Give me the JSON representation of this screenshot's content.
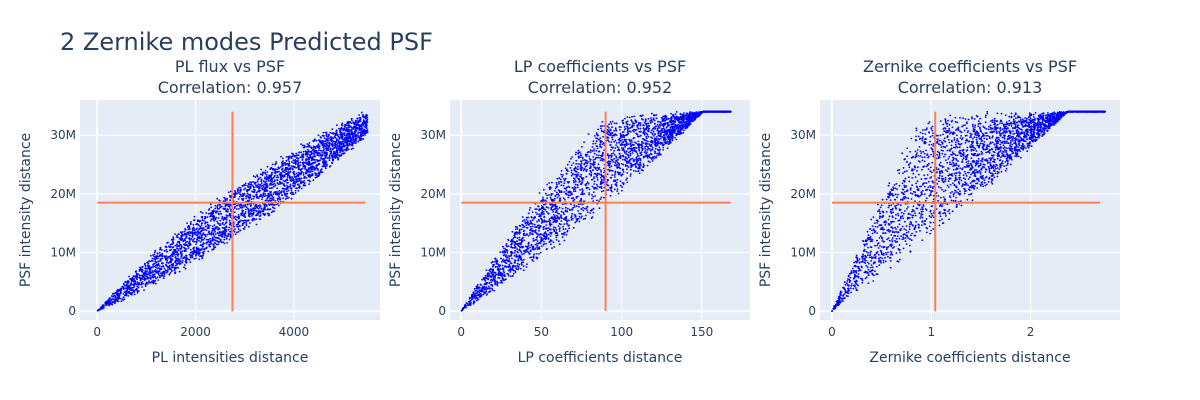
{
  "figure": {
    "title": "2 Zernike modes Predicted PSF"
  },
  "chart_data": [
    {
      "type": "scatter",
      "title": "PL flux vs PSF",
      "subtitle": "Correlation: 0.957",
      "xlabel": "PL intensities distance",
      "ylabel": "PSF intensity distance",
      "xlim": [
        -350,
        5750
      ],
      "ylim": [
        -1500000,
        36000000
      ],
      "xticks": [
        0,
        2000,
        4000
      ],
      "xtick_labels": [
        "0",
        "2000",
        "4000"
      ],
      "yticks": [
        0,
        10000000,
        20000000,
        30000000
      ],
      "ytick_labels": [
        "0",
        "10M",
        "20M",
        "30M"
      ],
      "point_color": "#0000ff",
      "line_color": "#ff7f50",
      "scatter": {
        "x_max": 5500,
        "y_max": 34000000,
        "upper_slope": 10000,
        "upper_curve": 0.6,
        "lower_slope": 3200,
        "lower_curve": 2.0
      },
      "mean_x": 2750,
      "mean_y": 18500000,
      "vline_y": [
        0,
        34000000
      ],
      "hline_x": [
        0,
        5450
      ]
    },
    {
      "type": "scatter",
      "title": "LP coefficients vs PSF",
      "subtitle": "Correlation: 0.952",
      "xlabel": "LP coefficients distance",
      "ylabel": "PSF intensity distance",
      "xlim": [
        -7,
        180
      ],
      "ylim": [
        -1500000,
        36000000
      ],
      "xticks": [
        0,
        50,
        100,
        150
      ],
      "xtick_labels": [
        "0",
        "50",
        "100",
        "150"
      ],
      "yticks": [
        0,
        10000000,
        20000000,
        30000000
      ],
      "ytick_labels": [
        "0",
        "10M",
        "20M",
        "30M"
      ],
      "point_color": "#0000ff",
      "line_color": "#ff7f50",
      "scatter": {
        "x_max": 168,
        "y_max": 34000000,
        "upper_slope": 480000,
        "upper_curve": 0.5,
        "lower_slope": 150000,
        "lower_curve": 1.6
      },
      "mean_x": 90,
      "mean_y": 18500000,
      "vline_y": [
        0,
        34000000
      ],
      "hline_x": [
        0,
        168
      ]
    },
    {
      "type": "scatter",
      "title": "Zernike coefficients vs PSF",
      "subtitle": "Correlation: 0.913",
      "xlabel": "Zernike coefficients distance",
      "ylabel": "PSF intensity distance",
      "xlim": [
        -0.12,
        2.9
      ],
      "ylim": [
        -1500000,
        36000000
      ],
      "xticks": [
        0,
        1,
        2
      ],
      "xtick_labels": [
        "0",
        "1",
        "2"
      ],
      "yticks": [
        0,
        10000000,
        20000000,
        30000000
      ],
      "ytick_labels": [
        "0",
        "10M",
        "20M",
        "30M"
      ],
      "point_color": "#0000ff",
      "line_color": "#ff7f50",
      "scatter": {
        "x_max": 2.75,
        "y_max": 34000000,
        "upper_slope": 42000000,
        "upper_curve": 0.35,
        "lower_slope": 11000000,
        "lower_curve": 1.0
      },
      "mean_x": 1.04,
      "mean_y": 18500000,
      "vline_y": [
        0,
        34000000
      ],
      "hline_x": [
        0,
        2.7
      ]
    }
  ]
}
